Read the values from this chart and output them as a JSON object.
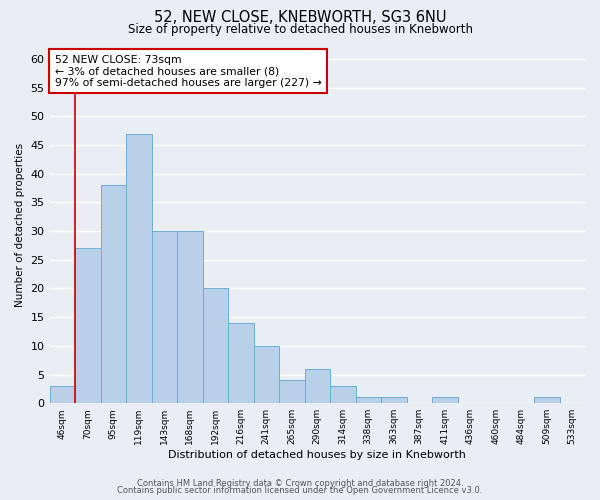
{
  "title1": "52, NEW CLOSE, KNEBWORTH, SG3 6NU",
  "title2": "Size of property relative to detached houses in Knebworth",
  "xlabel": "Distribution of detached houses by size in Knebworth",
  "ylabel": "Number of detached properties",
  "categories": [
    "46sqm",
    "70sqm",
    "95sqm",
    "119sqm",
    "143sqm",
    "168sqm",
    "192sqm",
    "216sqm",
    "241sqm",
    "265sqm",
    "290sqm",
    "314sqm",
    "338sqm",
    "363sqm",
    "387sqm",
    "411sqm",
    "436sqm",
    "460sqm",
    "484sqm",
    "509sqm",
    "533sqm"
  ],
  "values": [
    3,
    27,
    38,
    47,
    30,
    30,
    20,
    14,
    10,
    4,
    6,
    3,
    1,
    1,
    0,
    1,
    0,
    0,
    0,
    1,
    0
  ],
  "bar_color": "#b8d0e8",
  "bar_edge_color": "#6aaed6",
  "ylim": [
    0,
    62
  ],
  "yticks": [
    0,
    5,
    10,
    15,
    20,
    25,
    30,
    35,
    40,
    45,
    50,
    55,
    60
  ],
  "vline_color": "#cc0000",
  "annotation_text": "52 NEW CLOSE: 73sqm\n← 3% of detached houses are smaller (8)\n97% of semi-detached houses are larger (227) →",
  "annotation_box_color": "#ffffff",
  "annotation_box_edge_color": "#cc0000",
  "footer1": "Contains HM Land Registry data © Crown copyright and database right 2024.",
  "footer2": "Contains public sector information licensed under the Open Government Licence v3.0.",
  "background_color": "#e8eef4",
  "plot_bg_color": "#e8eef4",
  "grid_color": "#ffffff"
}
